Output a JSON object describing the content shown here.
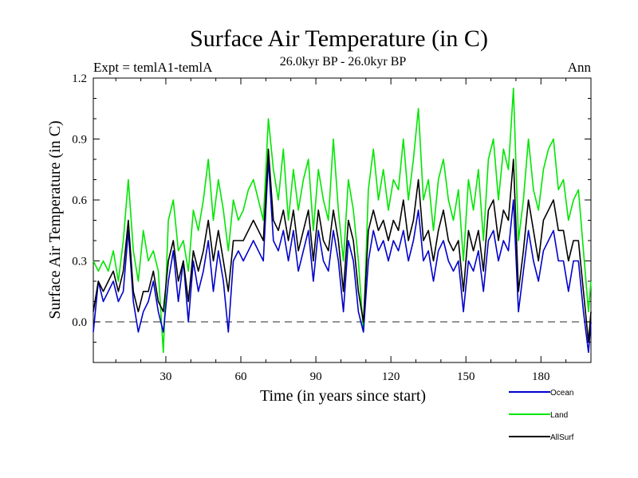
{
  "chart_data": {
    "type": "line",
    "title": "Surface Air Temperature (in C)",
    "subtitle": "26.0kyr BP - 26.0kyr BP",
    "expt_label": "Expt = temlA1-temlA",
    "season_label": "Ann",
    "xlabel": "Time (in years since start)",
    "ylabel": "Surface Air Temperature (in C)",
    "xlim": [
      1,
      200
    ],
    "ylim": [
      -0.2,
      1.2
    ],
    "xticks": [
      30,
      60,
      90,
      120,
      150,
      180
    ],
    "xtick_labels": [
      "30",
      "60",
      "90",
      "120",
      "150",
      "180"
    ],
    "yticks": [
      0.0,
      0.3,
      0.6,
      0.9,
      1.2
    ],
    "ytick_labels": [
      "0.0",
      "0.3",
      "0.6",
      "0.9",
      "1.2"
    ],
    "reference_line": 0.0,
    "legend_position": "bottom-right",
    "series": [
      {
        "name": "Ocean",
        "color": "#0000cc",
        "x": [
          1,
          3,
          5,
          7,
          9,
          11,
          13,
          15,
          17,
          19,
          21,
          23,
          25,
          27,
          29,
          31,
          33,
          35,
          37,
          39,
          41,
          43,
          45,
          47,
          49,
          51,
          53,
          55,
          57,
          59,
          61,
          63,
          65,
          67,
          69,
          71,
          73,
          75,
          77,
          79,
          81,
          83,
          85,
          87,
          89,
          91,
          93,
          95,
          97,
          99,
          101,
          103,
          105,
          107,
          109,
          111,
          113,
          115,
          117,
          119,
          121,
          123,
          125,
          127,
          129,
          131,
          133,
          135,
          137,
          139,
          141,
          143,
          145,
          147,
          149,
          151,
          153,
          155,
          157,
          159,
          161,
          163,
          165,
          167,
          169,
          171,
          173,
          175,
          177,
          179,
          181,
          183,
          185,
          187,
          189,
          191,
          193,
          195,
          197,
          199,
          200
        ],
        "values": [
          -0.05,
          0.2,
          0.1,
          0.15,
          0.2,
          0.1,
          0.15,
          0.45,
          0.1,
          -0.05,
          0.05,
          0.1,
          0.2,
          0.05,
          -0.05,
          0.2,
          0.35,
          0.1,
          0.3,
          0.0,
          0.3,
          0.15,
          0.25,
          0.4,
          0.15,
          0.35,
          0.2,
          -0.05,
          0.3,
          0.35,
          0.3,
          0.35,
          0.4,
          0.35,
          0.3,
          0.8,
          0.4,
          0.35,
          0.45,
          0.3,
          0.45,
          0.25,
          0.35,
          0.45,
          0.2,
          0.45,
          0.3,
          0.25,
          0.45,
          0.3,
          0.05,
          0.4,
          0.3,
          0.05,
          -0.05,
          0.3,
          0.45,
          0.35,
          0.4,
          0.3,
          0.4,
          0.35,
          0.45,
          0.3,
          0.4,
          0.55,
          0.3,
          0.35,
          0.2,
          0.35,
          0.4,
          0.3,
          0.25,
          0.3,
          0.05,
          0.3,
          0.25,
          0.35,
          0.15,
          0.4,
          0.45,
          0.3,
          0.4,
          0.35,
          0.6,
          0.05,
          0.25,
          0.45,
          0.3,
          0.2,
          0.35,
          0.4,
          0.45,
          0.3,
          0.3,
          0.15,
          0.3,
          0.3,
          0.05,
          -0.15,
          0.0
        ]
      },
      {
        "name": "Land",
        "color": "#00e600",
        "x": [
          1,
          3,
          5,
          7,
          9,
          11,
          13,
          15,
          17,
          19,
          21,
          23,
          25,
          27,
          29,
          31,
          33,
          35,
          37,
          39,
          41,
          43,
          45,
          47,
          49,
          51,
          53,
          55,
          57,
          59,
          61,
          63,
          65,
          67,
          69,
          71,
          73,
          75,
          77,
          79,
          81,
          83,
          85,
          87,
          89,
          91,
          93,
          95,
          97,
          99,
          101,
          103,
          105,
          107,
          109,
          111,
          113,
          115,
          117,
          119,
          121,
          123,
          125,
          127,
          129,
          131,
          133,
          135,
          137,
          139,
          141,
          143,
          145,
          147,
          149,
          151,
          153,
          155,
          157,
          159,
          161,
          163,
          165,
          167,
          169,
          171,
          173,
          175,
          177,
          179,
          181,
          183,
          185,
          187,
          189,
          191,
          193,
          195,
          197,
          199,
          200
        ],
        "values": [
          0.3,
          0.25,
          0.3,
          0.25,
          0.35,
          0.2,
          0.4,
          0.7,
          0.35,
          0.2,
          0.45,
          0.3,
          0.35,
          0.25,
          -0.15,
          0.5,
          0.6,
          0.35,
          0.4,
          0.25,
          0.55,
          0.45,
          0.6,
          0.8,
          0.5,
          0.7,
          0.55,
          0.35,
          0.6,
          0.5,
          0.55,
          0.65,
          0.7,
          0.6,
          0.5,
          1.0,
          0.75,
          0.6,
          0.85,
          0.5,
          0.75,
          0.55,
          0.7,
          0.8,
          0.45,
          0.75,
          0.6,
          0.5,
          0.9,
          0.55,
          0.3,
          0.7,
          0.55,
          0.3,
          -0.05,
          0.65,
          0.85,
          0.6,
          0.75,
          0.55,
          0.7,
          0.65,
          0.9,
          0.6,
          0.8,
          1.05,
          0.6,
          0.7,
          0.45,
          0.7,
          0.8,
          0.6,
          0.5,
          0.65,
          0.3,
          0.7,
          0.55,
          0.75,
          0.4,
          0.8,
          0.9,
          0.6,
          0.85,
          0.75,
          1.15,
          0.4,
          0.6,
          0.9,
          0.65,
          0.55,
          0.75,
          0.85,
          0.9,
          0.65,
          0.7,
          0.5,
          0.6,
          0.65,
          0.35,
          0.05,
          0.2
        ]
      },
      {
        "name": "AllSurf",
        "color": "#000000",
        "x": [
          1,
          3,
          5,
          7,
          9,
          11,
          13,
          15,
          17,
          19,
          21,
          23,
          25,
          27,
          29,
          31,
          33,
          35,
          37,
          39,
          41,
          43,
          45,
          47,
          49,
          51,
          53,
          55,
          57,
          59,
          61,
          63,
          65,
          67,
          69,
          71,
          73,
          75,
          77,
          79,
          81,
          83,
          85,
          87,
          89,
          91,
          93,
          95,
          97,
          99,
          101,
          103,
          105,
          107,
          109,
          111,
          113,
          115,
          117,
          119,
          121,
          123,
          125,
          127,
          129,
          131,
          133,
          135,
          137,
          139,
          141,
          143,
          145,
          147,
          149,
          151,
          153,
          155,
          157,
          159,
          161,
          163,
          165,
          167,
          169,
          171,
          173,
          175,
          177,
          179,
          181,
          183,
          185,
          187,
          189,
          191,
          193,
          195,
          197,
          199,
          200
        ],
        "values": [
          0.05,
          0.2,
          0.15,
          0.2,
          0.25,
          0.15,
          0.25,
          0.5,
          0.15,
          0.05,
          0.15,
          0.15,
          0.25,
          0.1,
          0.05,
          0.3,
          0.4,
          0.2,
          0.3,
          0.1,
          0.35,
          0.25,
          0.35,
          0.5,
          0.3,
          0.45,
          0.3,
          0.15,
          0.4,
          0.4,
          0.4,
          0.45,
          0.5,
          0.45,
          0.4,
          0.85,
          0.5,
          0.45,
          0.55,
          0.4,
          0.55,
          0.35,
          0.45,
          0.55,
          0.3,
          0.55,
          0.4,
          0.35,
          0.55,
          0.4,
          0.15,
          0.5,
          0.4,
          0.15,
          0.0,
          0.45,
          0.55,
          0.45,
          0.5,
          0.4,
          0.5,
          0.45,
          0.6,
          0.4,
          0.5,
          0.7,
          0.4,
          0.45,
          0.3,
          0.45,
          0.55,
          0.4,
          0.35,
          0.4,
          0.15,
          0.45,
          0.35,
          0.45,
          0.25,
          0.55,
          0.6,
          0.4,
          0.55,
          0.5,
          0.8,
          0.15,
          0.35,
          0.6,
          0.45,
          0.3,
          0.5,
          0.55,
          0.6,
          0.45,
          0.45,
          0.3,
          0.4,
          0.4,
          0.15,
          -0.1,
          0.05
        ]
      }
    ]
  }
}
